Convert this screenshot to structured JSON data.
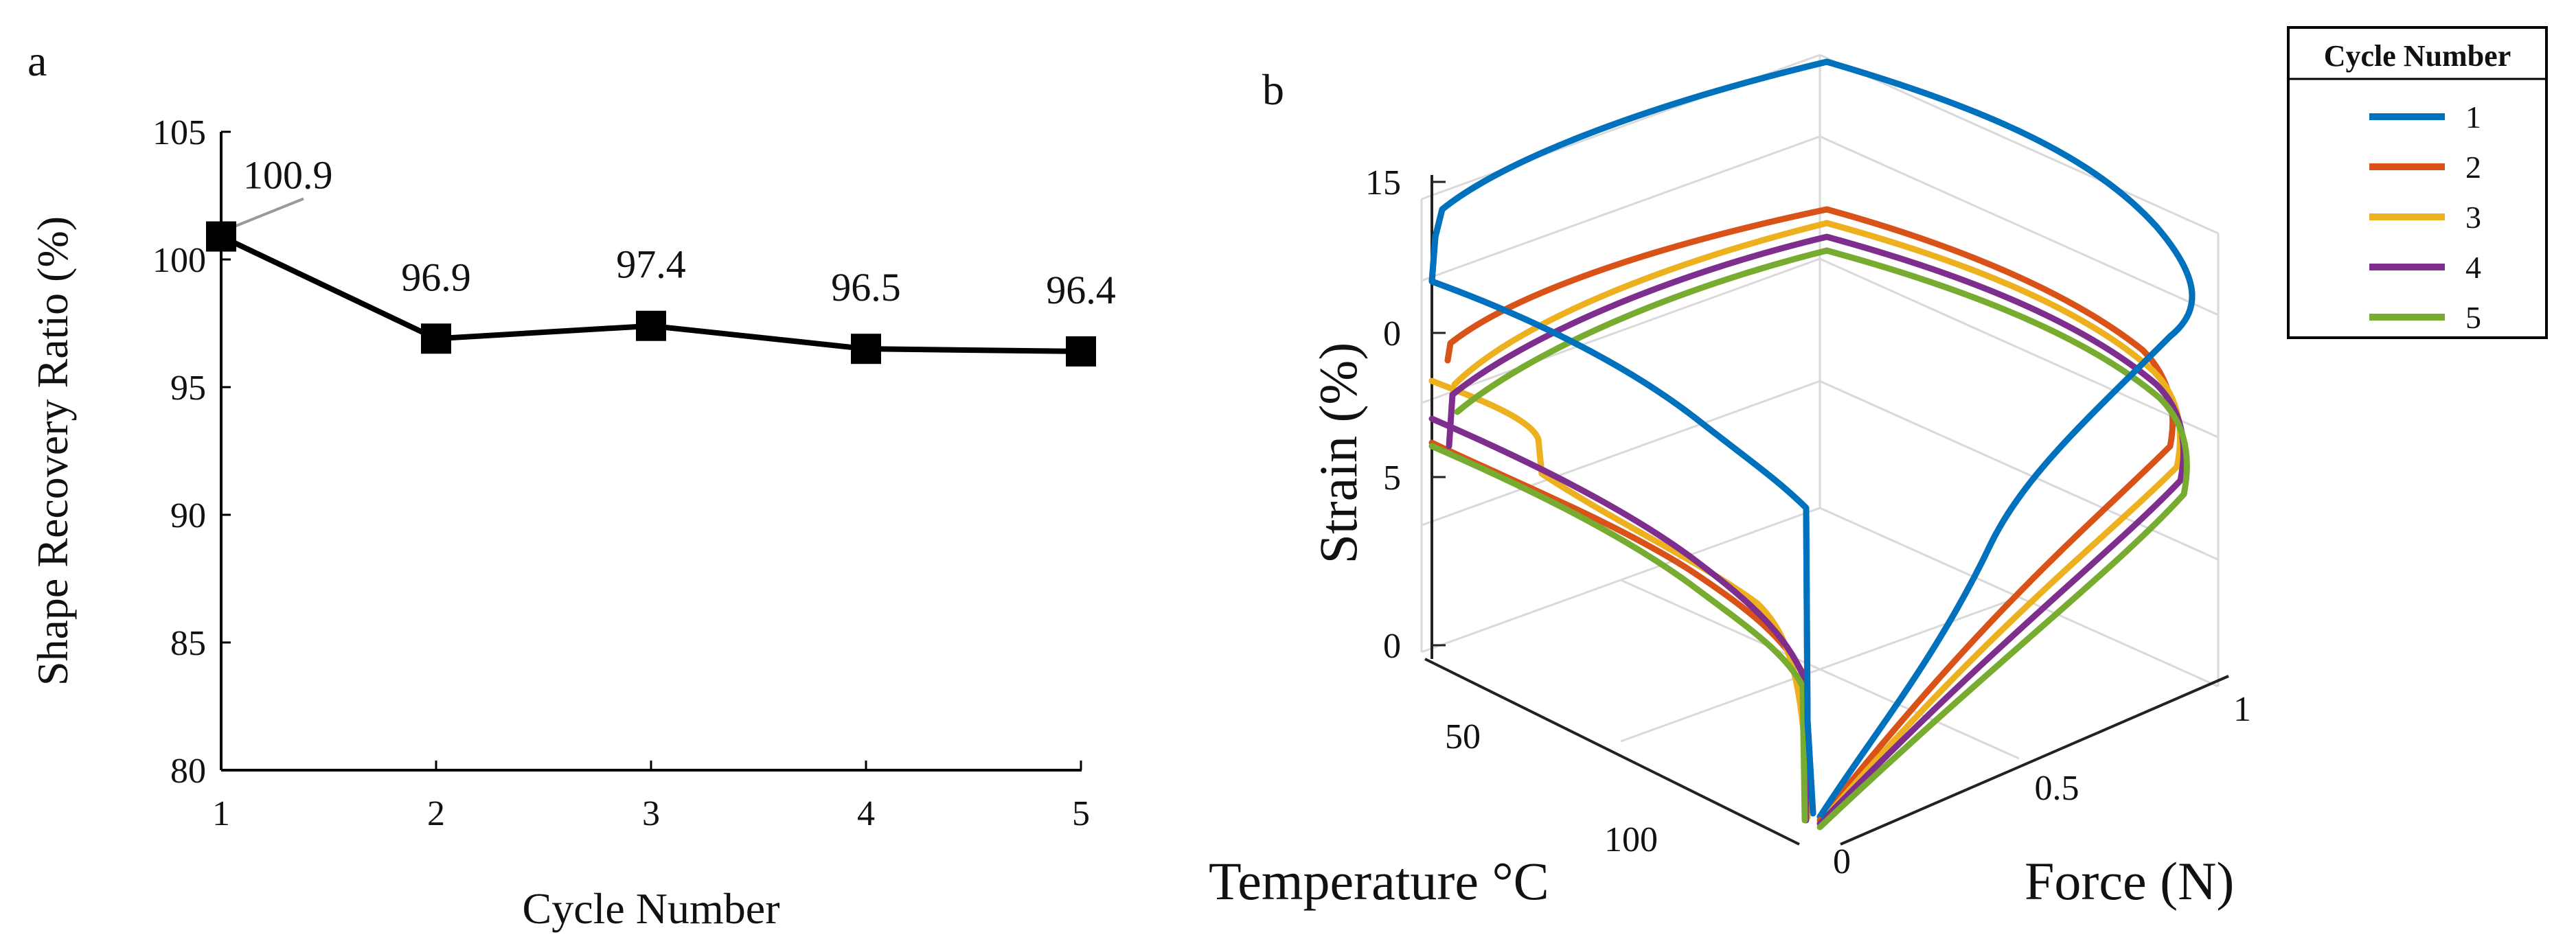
{
  "colors": {
    "black": "#000000",
    "grid": "#d9d9d9",
    "cycle1": "#0072BD",
    "cycle2": "#D95319",
    "cycle3": "#EDB120",
    "cycle4": "#7E2F8E",
    "cycle5": "#77AC30"
  },
  "chart_data": [
    {
      "panel": "a",
      "type": "line",
      "title": "",
      "xlabel": "Cycle Number",
      "ylabel": "Shape Recovery Ratio (%)",
      "x": [
        1,
        2,
        3,
        4,
        5
      ],
      "values": [
        100.9,
        96.9,
        97.4,
        96.5,
        96.4
      ],
      "data_labels": [
        "100.9",
        "96.9",
        "97.4",
        "96.5",
        "96.4"
      ],
      "x_ticks": [
        "1",
        "2",
        "3",
        "4",
        "5"
      ],
      "y_ticks": [
        "80",
        "85",
        "90",
        "95",
        "100",
        "105"
      ],
      "ylim": [
        80,
        105
      ],
      "xlim": [
        1,
        5
      ],
      "marker": "square",
      "grid": false
    },
    {
      "panel": "b",
      "type": "line",
      "title": "",
      "xlabel": "Temperature °C",
      "ylabel": "Force (N)",
      "zlabel": "Strain (%)",
      "temperature_ticks": [
        "50",
        "100"
      ],
      "force_ticks": [
        "0",
        "0.5",
        "1"
      ],
      "strain_ticks": [
        "0",
        "5",
        "0",
        "15"
      ],
      "grid": true,
      "legend": {
        "title": "Cycle Number",
        "placement": "top-right",
        "entries": [
          "1",
          "2",
          "3",
          "4",
          "5"
        ]
      },
      "series": [
        {
          "name": "1",
          "color": "#0072BD"
        },
        {
          "name": "2",
          "color": "#D95319"
        },
        {
          "name": "3",
          "color": "#EDB120"
        },
        {
          "name": "4",
          "color": "#7E2F8E"
        },
        {
          "name": "5",
          "color": "#77AC30"
        }
      ]
    }
  ]
}
